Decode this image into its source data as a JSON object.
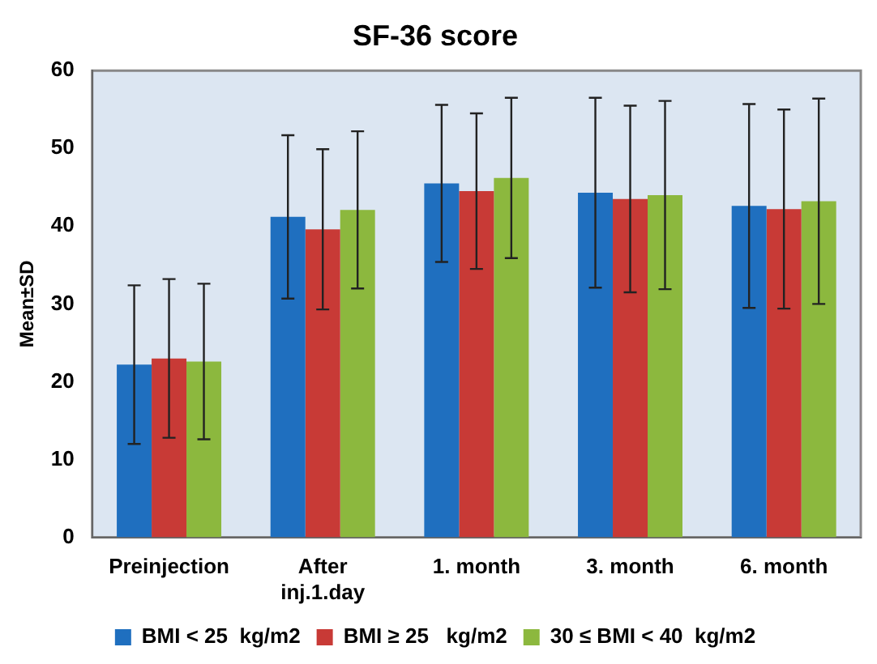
{
  "chart_data": {
    "type": "bar",
    "title": "SF-36 score",
    "ylabel": "Mean±SD",
    "categories": [
      "Preinjection",
      "After\ninj.1.day",
      "1. month",
      "3. month",
      "6. month"
    ],
    "series": [
      {
        "name": "BMI < 25  kg/m2",
        "color": "#1f6fbf",
        "values": [
          22.2,
          41.2,
          45.5,
          44.3,
          42.6
        ],
        "errors": [
          10.2,
          10.5,
          10.1,
          12.2,
          13.1
        ]
      },
      {
        "name": "BMI ≥ 25   kg/m2",
        "color": "#c83a36",
        "values": [
          23,
          39.6,
          44.5,
          43.5,
          42.2
        ],
        "errors": [
          10.2,
          10.3,
          10,
          12,
          12.8
        ]
      },
      {
        "name": "30 ≤ BMI < 40  kg/m2",
        "color": "#8cb83e",
        "values": [
          22.6,
          42.1,
          46.2,
          44,
          43.2
        ],
        "errors": [
          10,
          10.1,
          10.3,
          12.1,
          13.2
        ]
      }
    ],
    "ylim": [
      0,
      60
    ],
    "yticks": [
      0,
      10,
      20,
      30,
      40,
      50,
      60
    ],
    "grid": false,
    "legend": "bottom"
  }
}
